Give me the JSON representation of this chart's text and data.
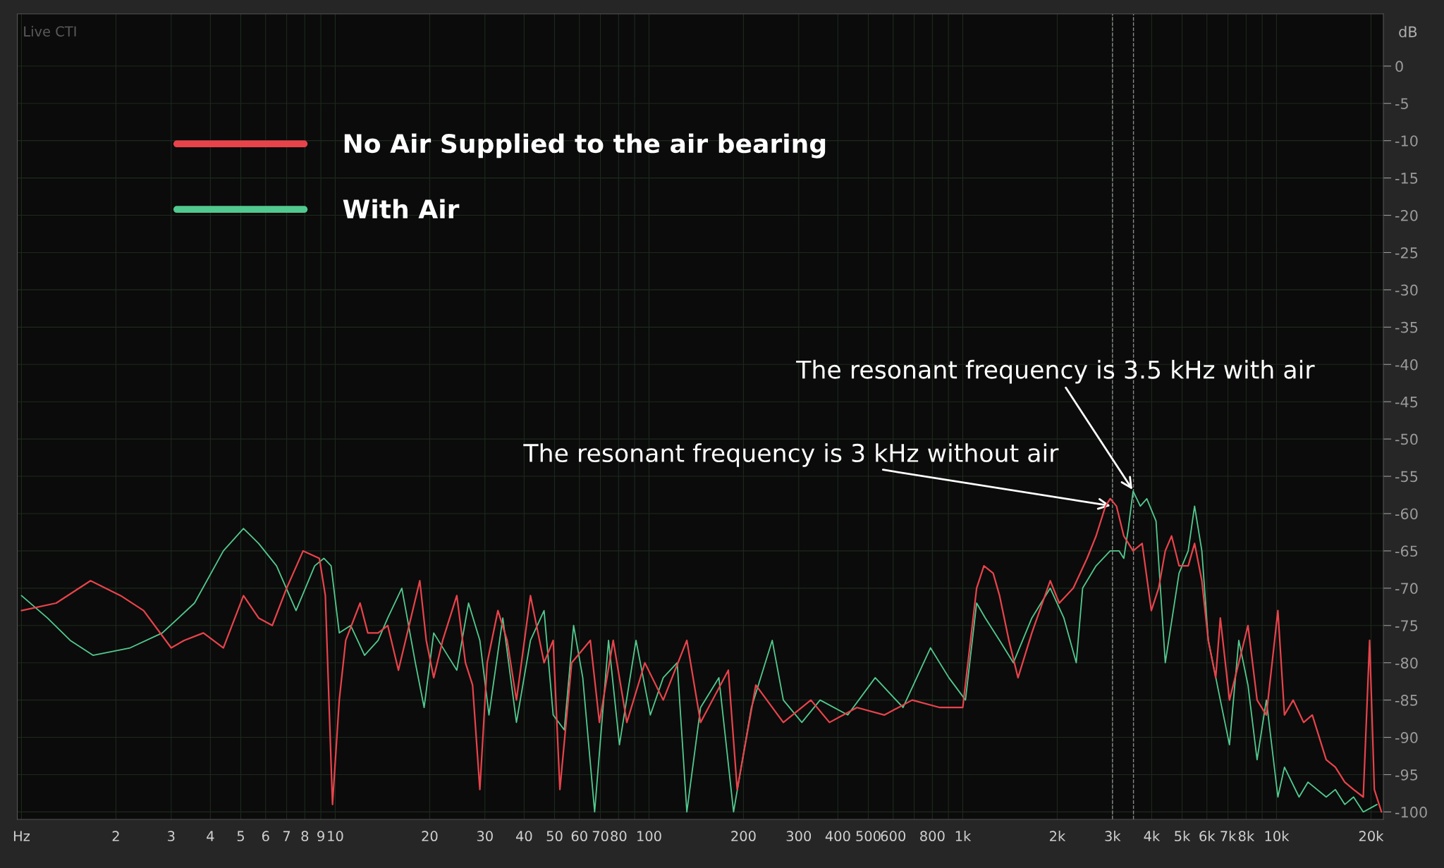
{
  "chart_data": {
    "type": "line",
    "ylabel": "dB",
    "annotations": [
      "Live CTI",
      {
        "text": "The resonant frequency is 3 kHz without air",
        "x": 3000,
        "y": -59
      },
      {
        "text": "The resonant frequency is 3.5 kHz with air",
        "x": 3500,
        "y": -57
      }
    ],
    "log": "x",
    "grid": true,
    "legend": "top left",
    "line_style": "solid",
    "marker": "none",
    "xlim": [
      0.97,
      21900
    ],
    "ylim": [
      -101,
      7
    ],
    "xticks": [
      {
        "value": 1,
        "label": "Hz"
      },
      2,
      3,
      4,
      5,
      6,
      7,
      8,
      9,
      10,
      20,
      30,
      40,
      50,
      60,
      70,
      80,
      {
        "value": 90,
        "label": null
      },
      100,
      200,
      300,
      400,
      500,
      600,
      {
        "value": 700,
        "label": null
      },
      800,
      {
        "value": 900,
        "label": null
      },
      {
        "value": 1000,
        "label": "1k"
      },
      {
        "value": 2000,
        "label": "2k"
      },
      {
        "value": 3000,
        "label": "3k"
      },
      {
        "value": 4000,
        "label": "4k"
      },
      {
        "value": 5000,
        "label": "5k"
      },
      {
        "value": 6000,
        "label": "6k"
      },
      {
        "value": 7000,
        "label": "7k"
      },
      {
        "value": 8000,
        "label": "8k"
      },
      {
        "value": 9000,
        "label": null
      },
      {
        "value": 10000,
        "label": "10k"
      },
      {
        "value": 20000,
        "label": "20k"
      }
    ],
    "yticks": [
      0,
      -5,
      -10,
      -15,
      -20,
      -25,
      -30,
      -35,
      -40,
      -45,
      -50,
      -55,
      -60,
      -65,
      -70,
      -75,
      -80,
      -85,
      -90,
      -95,
      -100
    ],
    "ref_lines": [
      {
        "axis": "x",
        "value": 3000,
        "color": "#8a8a8a",
        "line_style": "dashed"
      },
      {
        "axis": "x",
        "value": 3500,
        "color": "#8a8a8a",
        "line_style": "dashed"
      }
    ],
    "series": [
      {
        "name": "No Air Supplied to the air bearing",
        "color": "#e8434b",
        "x": [
          1,
          1.29,
          1.66,
          2.07,
          2.45,
          3.0,
          3.3,
          3.8,
          4.4,
          5.1,
          5.7,
          6.3,
          7.0,
          7.9,
          8.9,
          9.3,
          9.8,
          10.3,
          10.8,
          12,
          12.7,
          13.7,
          14.7,
          15.9,
          18.6,
          19.5,
          20.6,
          22,
          24.4,
          26,
          27.4,
          28.9,
          30.5,
          33,
          35.3,
          37.8,
          41.9,
          46.3,
          49.5,
          52,
          56.7,
          65,
          69.5,
          76.9,
          85,
          97,
          111,
          132,
          146,
          179,
          191,
          219,
          268,
          328,
          376,
          460,
          563,
          690,
          845,
          1000,
          1107,
          1168,
          1250,
          1310,
          1403,
          1500,
          1660,
          1900,
          2030,
          2250,
          2490,
          2660,
          2850,
          2950,
          3090,
          3260,
          3490,
          3730,
          3990,
          4210,
          4420,
          4630,
          4890,
          5230,
          5480,
          5780,
          6060,
          6400,
          6620,
          7080,
          7580,
          8110,
          8670,
          9280,
          10100,
          10600,
          11300,
          12200,
          13000,
          14400,
          15400,
          16500,
          17600,
          18900,
          19800,
          20500,
          21600
        ],
        "values": [
          -73,
          -72,
          -69,
          -71,
          -73,
          -78,
          -77,
          -76,
          -78,
          -71,
          -74,
          -75,
          -70,
          -65,
          -66,
          -71,
          -99,
          -85,
          -77,
          -72,
          -76,
          -76,
          -75,
          -81,
          -69,
          -77,
          -82,
          -77,
          -71,
          -80,
          -83,
          -97,
          -80,
          -73,
          -77,
          -85,
          -71,
          -80,
          -77,
          -97,
          -80,
          -77,
          -88,
          -77,
          -88,
          -80,
          -85,
          -77,
          -88,
          -81,
          -97,
          -83,
          -88,
          -85,
          -88,
          -86,
          -87,
          -85,
          -86,
          -86,
          -70,
          -67,
          -68,
          -71,
          -77,
          -82,
          -76,
          -69,
          -72,
          -70,
          -66,
          -63,
          -59,
          -58,
          -59,
          -63,
          -65,
          -64,
          -73,
          -70,
          -65,
          -63,
          -67,
          -67,
          -64,
          -69,
          -77,
          -82,
          -74,
          -85,
          -80,
          -75,
          -85,
          -87,
          -73,
          -87,
          -85,
          -88,
          -87,
          -93,
          -94,
          -96,
          -97,
          -98,
          -77,
          -97,
          -100
        ]
      },
      {
        "name": "With Air",
        "color": "#52c98e",
        "x": [
          1,
          1.21,
          1.43,
          1.69,
          2.22,
          2.81,
          3.56,
          4.4,
          5.1,
          5.7,
          6.5,
          7.5,
          8.6,
          9.2,
          9.7,
          10.3,
          11.2,
          12.4,
          13.7,
          14.7,
          16.3,
          18,
          19.2,
          20.6,
          22.8,
          24.4,
          26.6,
          28.9,
          30.9,
          34.2,
          37.8,
          41.9,
          46.3,
          49.5,
          53.7,
          57.5,
          61.5,
          67.1,
          74.3,
          80.5,
          90.9,
          101,
          111,
          123,
          132,
          146,
          167,
          186,
          212,
          247,
          268,
          307,
          351,
          430,
          526,
          645,
          789,
          903,
          1020,
          1107,
          1180,
          1310,
          1450,
          1660,
          1900,
          2100,
          2300,
          2410,
          2660,
          2950,
          3150,
          3260,
          3370,
          3490,
          3680,
          3860,
          4130,
          4420,
          4890,
          5230,
          5480,
          5780,
          6060,
          6620,
          7080,
          7580,
          8110,
          8670,
          9280,
          10100,
          10600,
          11800,
          12600,
          14400,
          15400,
          16500,
          17600,
          18900,
          20900
        ],
        "values": [
          -71,
          -74,
          -77,
          -79,
          -78,
          -76,
          -72,
          -65,
          -62,
          -64,
          -67,
          -73,
          -67,
          -66,
          -67,
          -76,
          -75,
          -79,
          -77,
          -74,
          -70,
          -80,
          -86,
          -76,
          -79,
          -81,
          -72,
          -77,
          -87,
          -74,
          -88,
          -77,
          -73,
          -87,
          -89,
          -75,
          -82,
          -100,
          -77,
          -91,
          -77,
          -87,
          -82,
          -80,
          -100,
          -86,
          -82,
          -100,
          -86,
          -77,
          -85,
          -88,
          -85,
          -87,
          -82,
          -86,
          -78,
          -82,
          -85,
          -72,
          -74,
          -77,
          -80,
          -74,
          -70,
          -74,
          -80,
          -70,
          -67,
          -65,
          -65,
          -66,
          -62,
          -57,
          -59,
          -58,
          -61,
          -80,
          -68,
          -65,
          -59,
          -65,
          -77,
          -85,
          -91,
          -77,
          -83,
          -93,
          -85,
          -98,
          -94,
          -98,
          -96,
          -98,
          -97,
          -99,
          -98,
          -100,
          -99
        ]
      }
    ]
  }
}
